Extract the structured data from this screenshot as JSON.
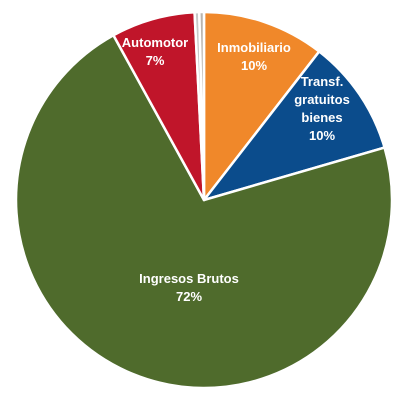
{
  "chart_data": {
    "type": "pie",
    "slices": [
      {
        "name": "Inmobiliario",
        "value_label": "10%",
        "value": 10.5,
        "color": "#F0882A"
      },
      {
        "name": "Transf.\ngratuitos\nbienes",
        "value_label": "10%",
        "value": 10.0,
        "color": "#0B4C8C"
      },
      {
        "name": "Ingresos Brutos",
        "value_label": "72%",
        "value": 71.5,
        "color": "#4F6B2C"
      },
      {
        "name": "Automotor",
        "value_label": "7%",
        "value": 7.2,
        "color": "#C0152A"
      },
      {
        "name": "",
        "value_label": "",
        "value": 0.4,
        "color": "#C8C8C8"
      },
      {
        "name": "",
        "value_label": "",
        "value": 0.4,
        "color": "#B9B4AE"
      }
    ]
  }
}
